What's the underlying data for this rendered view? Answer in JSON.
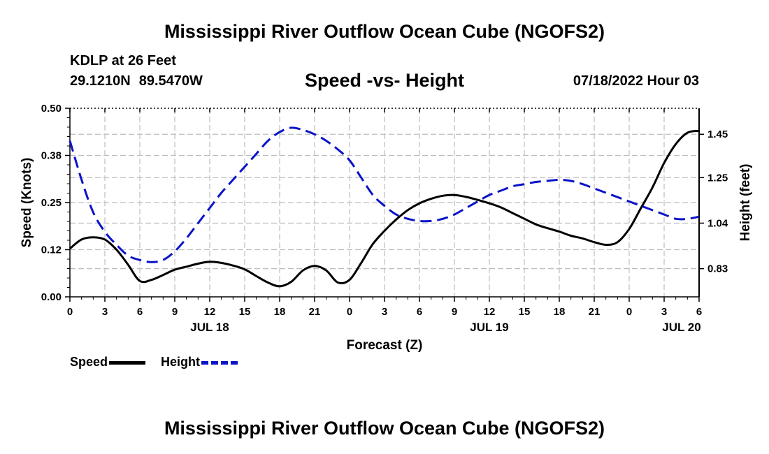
{
  "header": {
    "title": "Mississippi River Outflow Ocean Cube (NGOFS2)",
    "station": "KDLP at 26 Feet",
    "latitude": "29.1210N",
    "longitude": "89.5470W",
    "subtitle": "Speed -vs- Height",
    "datetime": "07/18/2022 Hour 03"
  },
  "footer": {
    "title": "Mississippi River Outflow Ocean Cube (NGOFS2)"
  },
  "legend": {
    "speed_label": "Speed",
    "height_label": "Height",
    "speed_color": "#000000",
    "height_color": "#0a14c8"
  },
  "chart_data": {
    "type": "line",
    "xlabel": "Forecast (Z)",
    "ylabel_left": "Speed (Knots)",
    "ylabel_right": "Height (feet)",
    "x_unit": "hours from 07/18 00Z",
    "xlim": [
      0,
      54
    ],
    "x_ticks": [
      0,
      3,
      6,
      9,
      12,
      15,
      18,
      21,
      24,
      27,
      30,
      33,
      36,
      39,
      42,
      45,
      48,
      51,
      54
    ],
    "x_tick_labels": [
      "0",
      "3",
      "6",
      "9",
      "12",
      "15",
      "18",
      "21",
      "0",
      "3",
      "6",
      "9",
      "12",
      "15",
      "18",
      "21",
      "0",
      "3",
      "6"
    ],
    "day_labels": [
      {
        "x": 12,
        "label": "JUL 18"
      },
      {
        "x": 36,
        "label": "JUL 19"
      },
      {
        "x": 52.5,
        "label": "JUL 20"
      }
    ],
    "ylim_left": [
      0,
      0.5
    ],
    "y_ticks_left": [
      0,
      0.125,
      0.25,
      0.375,
      0.5
    ],
    "y_tick_labels_left": [
      "0.00",
      "0.12",
      "0.25",
      "0.38",
      "0.50"
    ],
    "ylim_right": [
      0.7,
      1.57
    ],
    "y_ticks_right": [
      0.83,
      1.04,
      1.25,
      1.45
    ],
    "y_tick_labels_right": [
      "0.83",
      "1.04",
      "1.25",
      "1.45"
    ],
    "grid": true,
    "series": [
      {
        "name": "Speed",
        "axis": "left",
        "style": "solid",
        "x": [
          0,
          1,
          2,
          3,
          4,
          5,
          6,
          7,
          8,
          9,
          10,
          11,
          12,
          13,
          14,
          15,
          16,
          17,
          18,
          19,
          20,
          21,
          22,
          23,
          24,
          25,
          26,
          27,
          28,
          29,
          30,
          31,
          32,
          33,
          34,
          35,
          36,
          37,
          38,
          39,
          40,
          41,
          42,
          43,
          44,
          45,
          46,
          47,
          48,
          49,
          50,
          51,
          52,
          53,
          54
        ],
        "values": [
          0.128,
          0.152,
          0.158,
          0.152,
          0.125,
          0.085,
          0.042,
          0.045,
          0.058,
          0.072,
          0.08,
          0.088,
          0.093,
          0.09,
          0.083,
          0.073,
          0.055,
          0.038,
          0.028,
          0.04,
          0.07,
          0.082,
          0.07,
          0.038,
          0.045,
          0.09,
          0.14,
          0.175,
          0.205,
          0.23,
          0.248,
          0.26,
          0.268,
          0.27,
          0.265,
          0.257,
          0.248,
          0.237,
          0.222,
          0.207,
          0.192,
          0.182,
          0.173,
          0.162,
          0.155,
          0.145,
          0.138,
          0.145,
          0.18,
          0.235,
          0.29,
          0.355,
          0.405,
          0.435,
          0.44
        ]
      },
      {
        "name": "Height",
        "axis": "right",
        "style": "dashed",
        "x": [
          0,
          1,
          2,
          3,
          4,
          5,
          6,
          7,
          8,
          9,
          10,
          11,
          12,
          13,
          14,
          15,
          16,
          17,
          18,
          19,
          20,
          21,
          22,
          23,
          24,
          25,
          26,
          27,
          28,
          29,
          30,
          31,
          32,
          33,
          34,
          35,
          36,
          37,
          38,
          39,
          40,
          41,
          42,
          43,
          44,
          45,
          46,
          47,
          48,
          49,
          50,
          51,
          52,
          53,
          54
        ],
        "values": [
          1.42,
          1.24,
          1.09,
          1.0,
          0.94,
          0.89,
          0.87,
          0.86,
          0.87,
          0.91,
          0.97,
          1.04,
          1.11,
          1.18,
          1.24,
          1.3,
          1.36,
          1.42,
          1.46,
          1.48,
          1.47,
          1.45,
          1.42,
          1.38,
          1.33,
          1.25,
          1.17,
          1.12,
          1.08,
          1.06,
          1.05,
          1.05,
          1.06,
          1.08,
          1.11,
          1.14,
          1.17,
          1.19,
          1.21,
          1.22,
          1.23,
          1.235,
          1.24,
          1.235,
          1.22,
          1.2,
          1.18,
          1.16,
          1.14,
          1.12,
          1.1,
          1.08,
          1.06,
          1.06,
          1.07
        ]
      }
    ]
  }
}
